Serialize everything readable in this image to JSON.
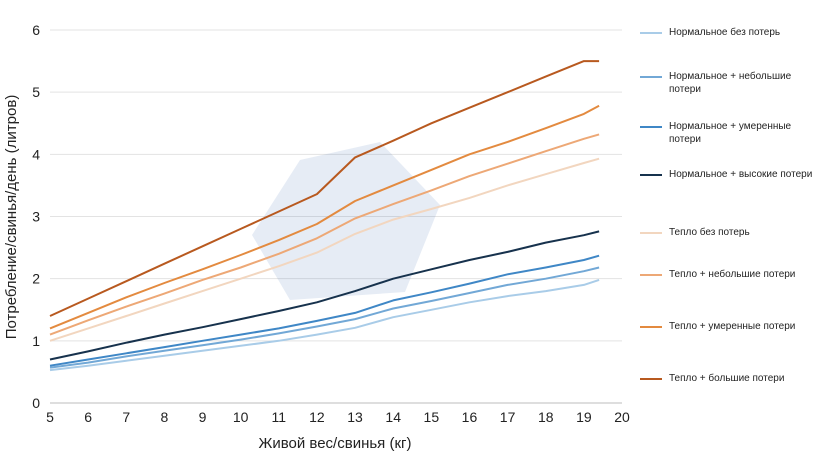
{
  "chart_data": {
    "type": "line",
    "xlabel": "Живой вес/свинья (кг)",
    "ylabel": "Потребление/свинья/день (литров)",
    "x_ticks": [
      "5",
      "6",
      "7",
      "8",
      "9",
      "10",
      "11",
      "12",
      "13",
      "14",
      "15",
      "16",
      "17",
      "18",
      "19",
      "20"
    ],
    "y_ticks": [
      "0",
      "1",
      "2",
      "3",
      "4",
      "5",
      "6"
    ],
    "xlim": [
      5,
      20
    ],
    "ylim": [
      0,
      6
    ],
    "grid": "horizontal",
    "legend_position": "right",
    "series": [
      {
        "name": "Нормальное без потерь",
        "color": "#a9cce8",
        "x": [
          5,
          6,
          7,
          8,
          9,
          10,
          11,
          12,
          13,
          14,
          15,
          16,
          17,
          18,
          19,
          19.4
        ],
        "y": [
          0.53,
          0.6,
          0.68,
          0.76,
          0.84,
          0.92,
          1.0,
          1.1,
          1.21,
          1.38,
          1.5,
          1.62,
          1.72,
          1.8,
          1.9,
          1.98
        ]
      },
      {
        "name": "Нормальное + небольшие потери",
        "color": "#72a8d6",
        "x": [
          5,
          6,
          7,
          8,
          9,
          10,
          11,
          12,
          13,
          14,
          15,
          16,
          17,
          18,
          19,
          19.4
        ],
        "y": [
          0.57,
          0.65,
          0.75,
          0.84,
          0.93,
          1.02,
          1.12,
          1.23,
          1.35,
          1.52,
          1.64,
          1.77,
          1.9,
          2.0,
          2.12,
          2.18
        ]
      },
      {
        "name": "Нормальное + умеренные потери",
        "color": "#3f87c6",
        "x": [
          5,
          6,
          7,
          8,
          9,
          10,
          11,
          12,
          13,
          14,
          15,
          16,
          17,
          18,
          19,
          19.4
        ],
        "y": [
          0.6,
          0.7,
          0.8,
          0.9,
          1.0,
          1.1,
          1.2,
          1.32,
          1.45,
          1.65,
          1.78,
          1.92,
          2.07,
          2.18,
          2.3,
          2.37
        ]
      },
      {
        "name": "Нормальное + высокие потери",
        "color": "#17324d",
        "x": [
          5,
          6,
          7,
          8,
          9,
          10,
          11,
          12,
          13,
          14,
          15,
          16,
          17,
          18,
          19,
          19.4
        ],
        "y": [
          0.7,
          0.83,
          0.97,
          1.1,
          1.22,
          1.35,
          1.48,
          1.62,
          1.8,
          2.0,
          2.15,
          2.3,
          2.43,
          2.58,
          2.7,
          2.76
        ]
      },
      {
        "name": "Тепло без потерь",
        "color": "#f2d6bf",
        "x": [
          5,
          6,
          7,
          8,
          9,
          10,
          11,
          12,
          13,
          14,
          15,
          16,
          17,
          18,
          19,
          19.4
        ],
        "y": [
          1.0,
          1.2,
          1.4,
          1.6,
          1.8,
          2.0,
          2.2,
          2.42,
          2.72,
          2.95,
          3.12,
          3.3,
          3.5,
          3.68,
          3.86,
          3.93
        ]
      },
      {
        "name": "Тепло + небольшие потери",
        "color": "#eda876",
        "x": [
          5,
          6,
          7,
          8,
          9,
          10,
          11,
          12,
          13,
          14,
          15,
          16,
          17,
          18,
          19,
          19.4
        ],
        "y": [
          1.1,
          1.33,
          1.55,
          1.76,
          1.98,
          2.18,
          2.4,
          2.65,
          2.97,
          3.2,
          3.42,
          3.65,
          3.85,
          4.05,
          4.25,
          4.32
        ]
      },
      {
        "name": "Тепло + умеренные потери",
        "color": "#e38a3f",
        "x": [
          5,
          6,
          7,
          8,
          9,
          10,
          11,
          12,
          13,
          14,
          15,
          16,
          17,
          18,
          19,
          19.4
        ],
        "y": [
          1.2,
          1.45,
          1.7,
          1.93,
          2.15,
          2.38,
          2.62,
          2.88,
          3.25,
          3.5,
          3.75,
          4.0,
          4.2,
          4.42,
          4.65,
          4.78
        ]
      },
      {
        "name": "Тепло + большие потери",
        "color": "#b8591f",
        "x": [
          5,
          6,
          7,
          8,
          9,
          10,
          11,
          12,
          13,
          14,
          15,
          16,
          17,
          18,
          19,
          19.4
        ],
        "y": [
          1.4,
          1.68,
          1.96,
          2.24,
          2.52,
          2.8,
          3.08,
          3.36,
          3.95,
          4.22,
          4.5,
          4.75,
          5.0,
          5.25,
          5.5,
          5.5
        ]
      }
    ]
  }
}
